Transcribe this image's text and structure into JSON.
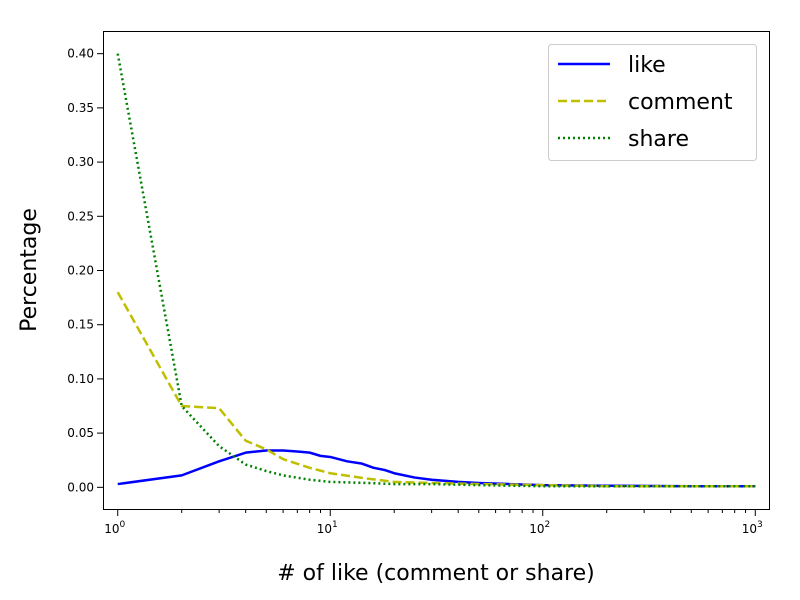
{
  "chart_data": {
    "type": "line",
    "xscale": "log",
    "xlim": [
      0.8618,
      1160.4
    ],
    "ylim": [
      -0.02,
      0.42
    ],
    "xlabel": "# of like (comment or share)",
    "ylabel": "Percentage",
    "x_ticks": [
      {
        "value": 1,
        "base": "10",
        "exp": "0"
      },
      {
        "value": 10,
        "base": "10",
        "exp": "1"
      },
      {
        "value": 100,
        "base": "10",
        "exp": "2"
      },
      {
        "value": 1000,
        "base": "10",
        "exp": "3"
      }
    ],
    "y_ticks": [
      "0.00",
      "0.05",
      "0.10",
      "0.15",
      "0.20",
      "0.25",
      "0.30",
      "0.35",
      "0.40"
    ],
    "grid": false,
    "legend_position": "top-right",
    "series": [
      {
        "name": "like",
        "color": "#0000ff",
        "style": "solid",
        "x": [
          1,
          2,
          3,
          4,
          5,
          6,
          7,
          8,
          9,
          10,
          12,
          14,
          16,
          18,
          20,
          25,
          30,
          40,
          50,
          70,
          100,
          200,
          500,
          1000
        ],
        "y": [
          0.003,
          0.011,
          0.024,
          0.032,
          0.034,
          0.034,
          0.033,
          0.032,
          0.029,
          0.028,
          0.024,
          0.022,
          0.018,
          0.016,
          0.013,
          0.009,
          0.007,
          0.005,
          0.004,
          0.003,
          0.002,
          0.0015,
          0.001,
          0.001
        ]
      },
      {
        "name": "comment",
        "color": "#bfbf00",
        "style": "dashed",
        "x": [
          1,
          2,
          3,
          4,
          5,
          6,
          8,
          10,
          15,
          20,
          30,
          50,
          100,
          200,
          500,
          1000
        ],
        "y": [
          0.18,
          0.075,
          0.073,
          0.043,
          0.035,
          0.026,
          0.018,
          0.013,
          0.008,
          0.005,
          0.004,
          0.003,
          0.002,
          0.001,
          0.001,
          0.001
        ]
      },
      {
        "name": "share",
        "color": "#008000",
        "style": "dotted",
        "x": [
          1,
          2,
          3,
          4,
          5,
          6,
          8,
          10,
          15,
          20,
          30,
          50,
          100,
          200,
          500,
          1000
        ],
        "y": [
          0.4,
          0.075,
          0.038,
          0.021,
          0.015,
          0.011,
          0.007,
          0.005,
          0.004,
          0.003,
          0.003,
          0.002,
          0.001,
          0.001,
          0.001,
          0.001
        ]
      }
    ]
  }
}
